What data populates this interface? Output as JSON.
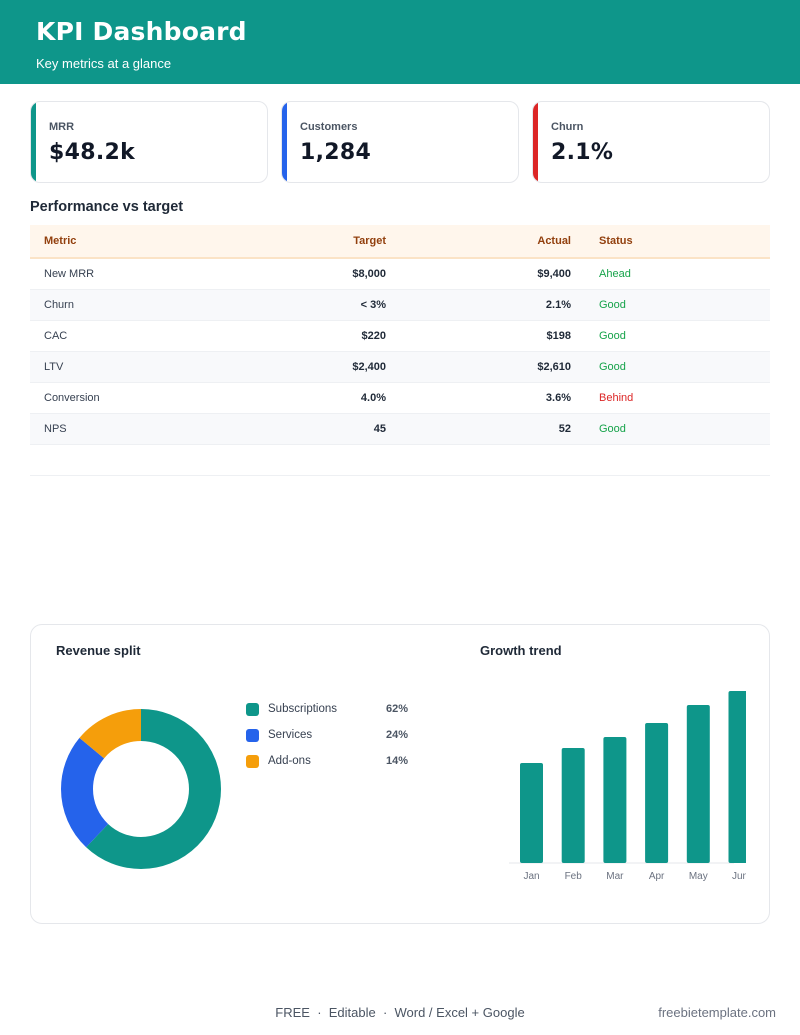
{
  "header": {
    "title": "KPI Dashboard",
    "subtitle": "Key metrics at a glance"
  },
  "kpis": [
    {
      "label": "MRR",
      "value": "$48.2k",
      "color": "#0e968a"
    },
    {
      "label": "Customers",
      "value": "1,284",
      "color": "#2563eb"
    },
    {
      "label": "Churn",
      "value": "2.1%",
      "color": "#dc2626"
    }
  ],
  "performance": {
    "title": "Performance vs target",
    "columns": [
      "Metric",
      "Target",
      "Actual",
      "Status"
    ],
    "rows": [
      {
        "metric": "New MRR",
        "target": "$8,000",
        "actual": "$9,400",
        "status": "Ahead"
      },
      {
        "metric": "Churn",
        "target": "< 3%",
        "actual": "2.1%",
        "status": "Good"
      },
      {
        "metric": "CAC",
        "target": "$220",
        "actual": "$198",
        "status": "Good"
      },
      {
        "metric": "LTV",
        "target": "$2,400",
        "actual": "$2,610",
        "status": "Good"
      },
      {
        "metric": "Conversion",
        "target": "4.0%",
        "actual": "3.6%",
        "status": "Behind"
      },
      {
        "metric": "NPS",
        "target": "45",
        "actual": "52",
        "status": "Good"
      }
    ]
  },
  "charts": {
    "revenue_title": "Revenue split",
    "growth_title": "Growth trend"
  },
  "chart_data": [
    {
      "type": "pie",
      "title": "Revenue split",
      "categories": [
        "Subscriptions",
        "Services",
        "Add-ons"
      ],
      "values": [
        62,
        24,
        14
      ],
      "value_labels": [
        "62%",
        "24%",
        "14%"
      ],
      "colors": [
        "#0e968a",
        "#2563eb",
        "#f59e0b"
      ],
      "legend": "right"
    },
    {
      "type": "bar",
      "title": "Growth trend",
      "categories": [
        "Jan",
        "Feb",
        "Mar",
        "Apr",
        "May",
        "Jun"
      ],
      "values": [
        100,
        115,
        126,
        140,
        158,
        172
      ],
      "color": "#0e968a",
      "grid": false
    }
  ],
  "footer": {
    "badges": "FREE  ·  Editable  ·  Word / Excel + Google",
    "site": "freebietemplate.com"
  }
}
